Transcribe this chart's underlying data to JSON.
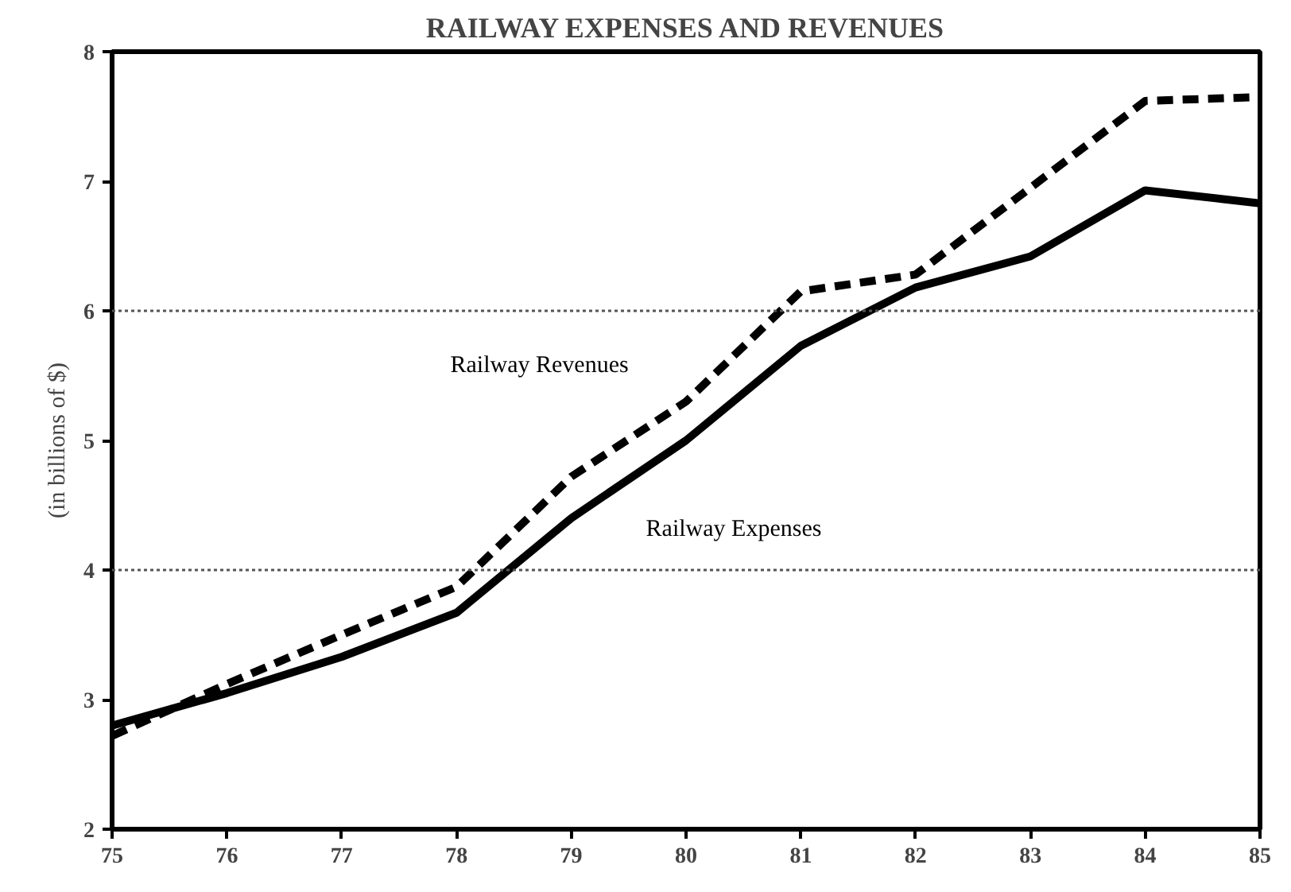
{
  "chart_data": {
    "type": "line",
    "title": "RAILWAY EXPENSES AND REVENUES",
    "ylabel": "(in billions of $)",
    "x": [
      75,
      76,
      77,
      78,
      79,
      80,
      81,
      82,
      83,
      84,
      85
    ],
    "series": [
      {
        "name": "Railway Revenues",
        "color": "#000000",
        "line_style": "dashed",
        "values": [
          2.72,
          3.12,
          3.5,
          3.87,
          4.72,
          5.3,
          6.15,
          6.28,
          6.95,
          7.62,
          7.65
        ]
      },
      {
        "name": "Railway Expenses",
        "color": "#000000",
        "line_style": "solid",
        "values": [
          2.8,
          3.05,
          3.33,
          3.67,
          4.4,
          5.0,
          5.73,
          6.18,
          6.42,
          6.93,
          6.83
        ]
      }
    ],
    "xlim": [
      75,
      85
    ],
    "xticks": [
      75,
      76,
      77,
      78,
      79,
      80,
      81,
      82,
      83,
      84,
      85
    ],
    "ylim": [
      2,
      8
    ],
    "yticks": [
      2,
      3,
      4,
      5,
      6,
      7,
      8
    ],
    "grid": false,
    "marker": "none",
    "ref_lines": [
      {
        "axis": "y",
        "value": 4,
        "line_style": "dotted",
        "color": "#555555"
      },
      {
        "axis": "y",
        "value": 6,
        "line_style": "dotted",
        "color": "#555555"
      }
    ]
  }
}
